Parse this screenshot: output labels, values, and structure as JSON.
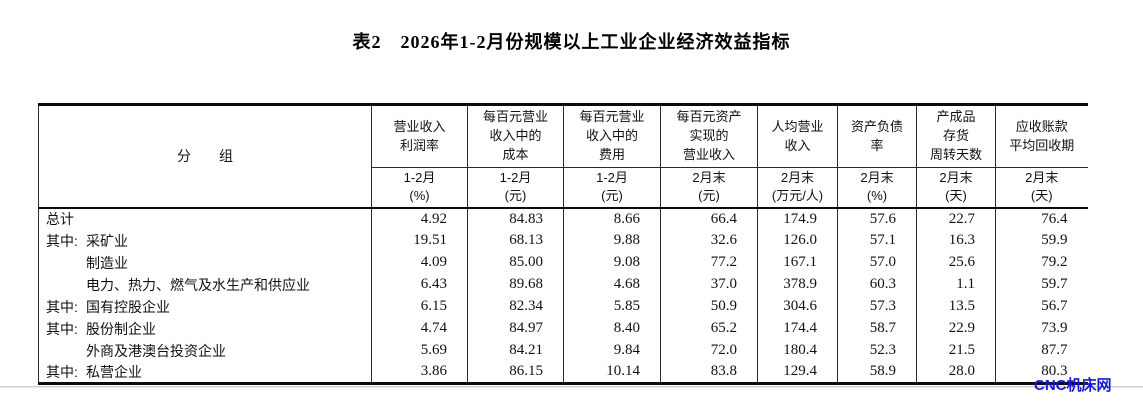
{
  "title": "表2　2026年1-2月份规模以上工业企业经济效益指标",
  "table": {
    "group_column_header": "分　　组",
    "columns": [
      {
        "label": "营业收入\n利润率",
        "sub": "1-2月\n(%)"
      },
      {
        "label": "每百元营业\n收入中的\n成本",
        "sub": "1-2月\n(元)"
      },
      {
        "label": "每百元营业\n收入中的\n费用",
        "sub": "1-2月\n(元)"
      },
      {
        "label": "每百元资产\n实现的\n营业收入",
        "sub": "2月末\n(元)"
      },
      {
        "label": "人均营业\n收入",
        "sub": "2月末\n(万元/人)"
      },
      {
        "label": "资产负债\n率",
        "sub": "2月末\n(%)"
      },
      {
        "label": "产成品\n存货\n周转天数",
        "sub": "2月末\n(天)"
      },
      {
        "label": "应收账款\n平均回收期",
        "sub": "2月末\n(天)"
      }
    ],
    "rows": [
      {
        "prefix": "",
        "indent": false,
        "label": "总计",
        "values": [
          "4.92",
          "84.83",
          "8.66",
          "66.4",
          "174.9",
          "57.6",
          "22.7",
          "76.4"
        ]
      },
      {
        "prefix": "其中:",
        "indent": true,
        "label": "采矿业",
        "values": [
          "19.51",
          "68.13",
          "9.88",
          "32.6",
          "126.0",
          "57.1",
          "16.3",
          "59.9"
        ]
      },
      {
        "prefix": "",
        "indent": true,
        "label": "制造业",
        "values": [
          "4.09",
          "85.00",
          "9.08",
          "77.2",
          "167.1",
          "57.0",
          "25.6",
          "79.2"
        ]
      },
      {
        "prefix": "",
        "indent": true,
        "label": "电力、热力、燃气及水生产和供应业",
        "values": [
          "6.43",
          "89.68",
          "4.68",
          "37.0",
          "378.9",
          "60.3",
          "1.1",
          "59.7"
        ]
      },
      {
        "prefix": "其中:",
        "indent": true,
        "label": "国有控股企业",
        "values": [
          "6.15",
          "82.34",
          "5.85",
          "50.9",
          "304.6",
          "57.3",
          "13.5",
          "56.7"
        ]
      },
      {
        "prefix": "其中:",
        "indent": true,
        "label": "股份制企业",
        "values": [
          "4.74",
          "84.97",
          "8.40",
          "65.2",
          "174.4",
          "58.7",
          "22.9",
          "73.9"
        ]
      },
      {
        "prefix": "",
        "indent": true,
        "label": "外商及港澳台投资企业",
        "values": [
          "5.69",
          "84.21",
          "9.84",
          "72.0",
          "180.4",
          "52.3",
          "21.5",
          "87.7"
        ]
      },
      {
        "prefix": "其中:",
        "indent": true,
        "label": "私营企业",
        "values": [
          "3.86",
          "86.15",
          "10.14",
          "83.8",
          "129.4",
          "58.9",
          "28.0",
          "80.3"
        ]
      }
    ]
  },
  "watermark": {
    "text": "CNC机床网",
    "color": "#1717d9"
  },
  "colors": {
    "border_heavy": "#0c0c0c",
    "border_thin": "#2b2b2b",
    "text": "#111111"
  }
}
